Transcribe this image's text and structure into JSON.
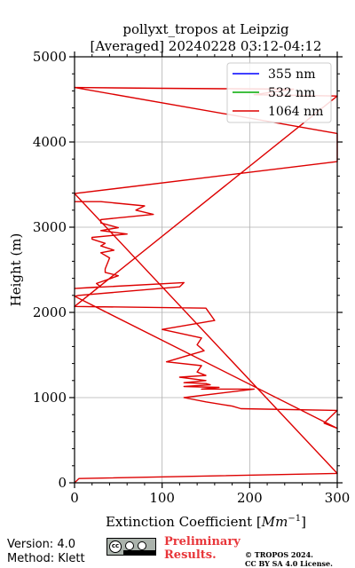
{
  "chart_data": {
    "type": "line",
    "title_line1": "pollyxt_tropos at Leipzig",
    "title_line2": "[Averaged] 20240228 03:12-04:12",
    "xlabel": "Extinction Coefficient [Mm⁻¹]",
    "ylabel": "Height (m)",
    "xlim": [
      0,
      300
    ],
    "ylim": [
      0,
      5000
    ],
    "xticks": [
      0,
      100,
      200,
      300
    ],
    "xtick_labels": [
      "0",
      "100",
      "200",
      "300"
    ],
    "yticks": [
      0,
      1000,
      2000,
      3000,
      4000,
      5000
    ],
    "ytick_labels": [
      "0",
      "1000",
      "2000",
      "3000",
      "4000",
      "5000"
    ],
    "grid": true,
    "legend_position": "top-right",
    "series": [
      {
        "name": "355 nm",
        "color": "#0000ff",
        "x": [],
        "y": []
      },
      {
        "name": "532 nm",
        "color": "#00aa00",
        "x": [],
        "y": []
      },
      {
        "name": "1064 nm",
        "color": "#dd0000",
        "x": [
          0,
          5,
          300,
          0,
          0,
          300,
          300,
          300,
          300,
          300,
          300,
          0,
          100,
          250,
          205,
          300,
          0,
          150,
          160,
          100,
          145,
          140,
          148,
          105,
          145,
          140,
          150,
          120,
          150,
          125,
          150,
          155,
          125,
          165,
          145,
          205,
          125,
          150,
          180,
          190,
          300,
          285,
          300,
          0,
          5,
          120,
          125,
          0,
          30,
          25,
          50,
          35,
          35,
          40,
          30,
          45,
          30,
          35,
          20,
          20,
          60,
          30,
          50,
          30,
          30,
          90,
          70,
          80,
          30,
          0
        ],
        "y": [
          0,
          50,
          110,
          3395,
          3395,
          3770,
          3800,
          3850,
          3900,
          4000,
          4100,
          4640,
          4630,
          4620,
          4555,
          4540,
          2070,
          2050,
          1905,
          1800,
          1700,
          1620,
          1550,
          1420,
          1375,
          1300,
          1260,
          1240,
          1200,
          1175,
          1165,
          1150,
          1130,
          1120,
          1100,
          1100,
          1000,
          950,
          900,
          870,
          850,
          700,
          640,
          2190,
          2200,
          2300,
          2350,
          2280,
          2300,
          2340,
          2430,
          2470,
          2510,
          2640,
          2700,
          2730,
          2780,
          2810,
          2860,
          2880,
          2920,
          2960,
          2995,
          3050,
          3090,
          3150,
          3200,
          3250,
          3300,
          3300
        ]
      }
    ]
  },
  "footer": {
    "version": "Version: 4.0",
    "method": "Method: Klett",
    "preliminary_line1": "Preliminary",
    "preliminary_line2": "Results.",
    "copyright_line1": "© TROPOS 2024.",
    "copyright_line2": "CC BY SA 4.0 License."
  }
}
